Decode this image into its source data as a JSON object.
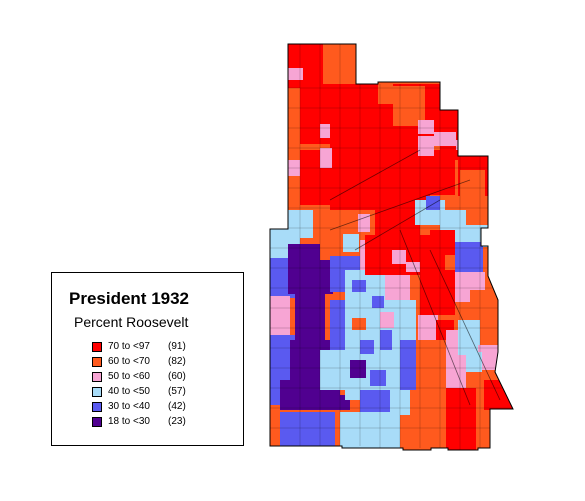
{
  "legend": {
    "title": "President 1932",
    "subtitle": "Percent Roosevelt",
    "classes": [
      {
        "range": "70 to <97",
        "count": "(91)",
        "color": "#ff0000"
      },
      {
        "range": "60 to <70",
        "count": "(82)",
        "color": "#ff5a1e"
      },
      {
        "range": "50 to <60",
        "count": "(60)",
        "color": "#f7a5d4"
      },
      {
        "range": "40 to <50",
        "count": "(57)",
        "color": "#a8dcf8"
      },
      {
        "range": "30 to <40",
        "count": "(42)",
        "color": "#5a5af0"
      },
      {
        "range": "18 to <30",
        "count": "(23)",
        "color": "#500090"
      }
    ]
  }
}
